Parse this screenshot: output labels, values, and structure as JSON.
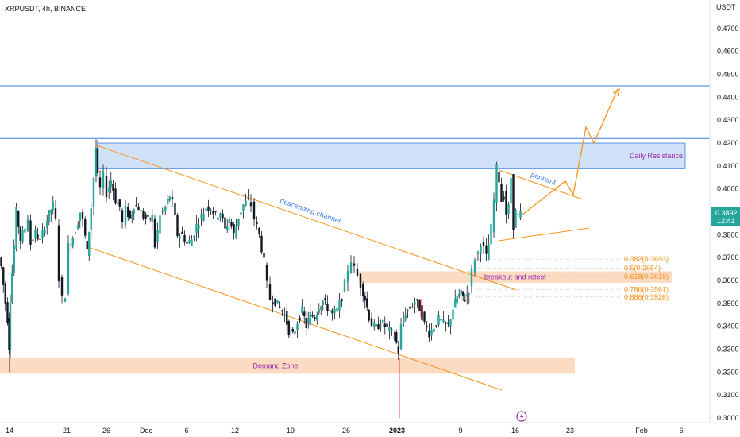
{
  "header": {
    "title": "XRPUSDT, 4h, BINANCE"
  },
  "colors": {
    "candle_up": "#26a69a",
    "candle_down": "#131722",
    "wick": "#131722",
    "trendline": "#f7931a",
    "resistance_fill": "#c9dcf6",
    "zone_fill": "#fbd2b4",
    "hline": "#3a7de6",
    "fib": "#f7931a",
    "channel_label": "#3a7de6",
    "zone_label": "#9c27b0",
    "price_badge": "#26a69a"
  },
  "chart_data": {
    "type": "candlestick",
    "y_axis": {
      "unit_label": "USDT",
      "range": [
        0.295,
        0.4835
      ],
      "ticks": [
        "0.4700",
        "0.4600",
        "0.4500",
        "0.4400",
        "0.4300",
        "0.4200",
        "0.4100",
        "0.4000",
        "0.3900",
        "0.3800",
        "0.3700",
        "0.3600",
        "0.3500",
        "0.3400",
        "0.3300",
        "0.3200",
        "0.3100",
        "0.3000"
      ]
    },
    "x_axis": {
      "ticks": [
        "14",
        "21",
        "26",
        "Dec",
        "6",
        "12",
        "19",
        "26",
        "2023",
        "9",
        "16",
        "23",
        "Feb",
        "6"
      ]
    },
    "current_price": "0.3892",
    "countdown": "12:41",
    "horizontal_lines": [
      0.445,
      0.422
    ],
    "zones": [
      {
        "label": "Daily Resistance",
        "top": 0.42,
        "bottom": 0.4088
      },
      {
        "label": "breakout and retest",
        "top": 0.364,
        "bottom": 0.359
      },
      {
        "label": "Demand Zone",
        "top": 0.3262,
        "bottom": 0.3193
      }
    ],
    "channel_label": "descending channel",
    "pennant_label": "pennant",
    "fib_levels": [
      {
        "label": "0.382(0.3693)",
        "value": 0.3693
      },
      {
        "label": "0.5(0.3654)",
        "value": 0.3654
      },
      {
        "label": "0.618(0.3618)",
        "value": 0.3618
      },
      {
        "label": "0.786(0.3561)",
        "value": 0.3561
      },
      {
        "label": "0.886(0.3528)",
        "value": 0.3528
      }
    ],
    "price_path": [
      {
        "t": 0,
        "p": 0.37
      },
      {
        "t": 3,
        "p": 0.366
      },
      {
        "t": 8,
        "p": 0.35
      },
      {
        "t": 11,
        "p": 0.343
      },
      {
        "t": 12,
        "p": 0.331
      },
      {
        "t": 14,
        "p": 0.352
      },
      {
        "t": 19,
        "p": 0.375
      },
      {
        "t": 22,
        "p": 0.39
      },
      {
        "t": 27,
        "p": 0.378
      },
      {
        "t": 33,
        "p": 0.383
      },
      {
        "t": 37,
        "p": 0.388
      },
      {
        "t": 40,
        "p": 0.376
      },
      {
        "t": 46,
        "p": 0.381
      },
      {
        "t": 52,
        "p": 0.377
      },
      {
        "t": 58,
        "p": 0.384
      },
      {
        "t": 63,
        "p": 0.389
      },
      {
        "t": 68,
        "p": 0.393
      },
      {
        "t": 72,
        "p": 0.386
      },
      {
        "t": 76,
        "p": 0.361
      },
      {
        "t": 80,
        "p": 0.352
      },
      {
        "t": 84,
        "p": 0.354
      },
      {
        "t": 88,
        "p": 0.375
      },
      {
        "t": 93,
        "p": 0.379
      },
      {
        "t": 97,
        "p": 0.382
      },
      {
        "t": 102,
        "p": 0.39
      },
      {
        "t": 106,
        "p": 0.386
      },
      {
        "t": 111,
        "p": 0.372
      },
      {
        "t": 116,
        "p": 0.392
      },
      {
        "t": 120,
        "p": 0.405
      },
      {
        "t": 122,
        "p": 0.418
      },
      {
        "t": 124,
        "p": 0.405
      },
      {
        "t": 128,
        "p": 0.4
      },
      {
        "t": 132,
        "p": 0.406
      },
      {
        "t": 136,
        "p": 0.398
      },
      {
        "t": 141,
        "p": 0.404
      },
      {
        "t": 147,
        "p": 0.395
      },
      {
        "t": 152,
        "p": 0.392
      },
      {
        "t": 156,
        "p": 0.385
      },
      {
        "t": 160,
        "p": 0.391
      },
      {
        "t": 165,
        "p": 0.387
      },
      {
        "t": 170,
        "p": 0.393
      },
      {
        "t": 176,
        "p": 0.392
      },
      {
        "t": 182,
        "p": 0.388
      },
      {
        "t": 188,
        "p": 0.386
      },
      {
        "t": 193,
        "p": 0.388
      },
      {
        "t": 197,
        "p": 0.375
      },
      {
        "t": 203,
        "p": 0.388
      },
      {
        "t": 210,
        "p": 0.392
      },
      {
        "t": 215,
        "p": 0.397
      },
      {
        "t": 219,
        "p": 0.394
      },
      {
        "t": 225,
        "p": 0.38
      },
      {
        "t": 231,
        "p": 0.38
      },
      {
        "t": 237,
        "p": 0.376
      },
      {
        "t": 243,
        "p": 0.378
      },
      {
        "t": 249,
        "p": 0.384
      },
      {
        "t": 255,
        "p": 0.388
      },
      {
        "t": 261,
        "p": 0.392
      },
      {
        "t": 267,
        "p": 0.392
      },
      {
        "t": 273,
        "p": 0.388
      },
      {
        "t": 279,
        "p": 0.39
      },
      {
        "t": 285,
        "p": 0.382
      },
      {
        "t": 290,
        "p": 0.387
      },
      {
        "t": 296,
        "p": 0.38
      },
      {
        "t": 302,
        "p": 0.388
      },
      {
        "t": 308,
        "p": 0.393
      },
      {
        "t": 314,
        "p": 0.395
      },
      {
        "t": 318,
        "p": 0.393
      },
      {
        "t": 322,
        "p": 0.387
      },
      {
        "t": 328,
        "p": 0.38
      },
      {
        "t": 334,
        "p": 0.368
      },
      {
        "t": 338,
        "p": 0.358
      },
      {
        "t": 342,
        "p": 0.352
      },
      {
        "t": 348,
        "p": 0.351
      },
      {
        "t": 354,
        "p": 0.348
      },
      {
        "t": 360,
        "p": 0.345
      },
      {
        "t": 365,
        "p": 0.338
      },
      {
        "t": 370,
        "p": 0.336
      },
      {
        "t": 376,
        "p": 0.342
      },
      {
        "t": 382,
        "p": 0.347
      },
      {
        "t": 387,
        "p": 0.34
      },
      {
        "t": 392,
        "p": 0.345
      },
      {
        "t": 398,
        "p": 0.344
      },
      {
        "t": 403,
        "p": 0.349
      },
      {
        "t": 408,
        "p": 0.351
      },
      {
        "t": 414,
        "p": 0.348
      },
      {
        "t": 420,
        "p": 0.345
      },
      {
        "t": 426,
        "p": 0.347
      },
      {
        "t": 432,
        "p": 0.353
      },
      {
        "t": 436,
        "p": 0.358
      },
      {
        "t": 440,
        "p": 0.365
      },
      {
        "t": 444,
        "p": 0.369
      },
      {
        "t": 448,
        "p": 0.365
      },
      {
        "t": 452,
        "p": 0.362
      },
      {
        "t": 456,
        "p": 0.358
      },
      {
        "t": 461,
        "p": 0.352
      },
      {
        "t": 466,
        "p": 0.344
      },
      {
        "t": 470,
        "p": 0.341
      },
      {
        "t": 475,
        "p": 0.339
      },
      {
        "t": 481,
        "p": 0.342
      },
      {
        "t": 486,
        "p": 0.34
      },
      {
        "t": 492,
        "p": 0.338
      },
      {
        "t": 498,
        "p": 0.336
      },
      {
        "t": 503,
        "p": 0.329
      },
      {
        "t": 507,
        "p": 0.34
      },
      {
        "t": 512,
        "p": 0.346
      },
      {
        "t": 518,
        "p": 0.348
      },
      {
        "t": 524,
        "p": 0.351
      },
      {
        "t": 530,
        "p": 0.348
      },
      {
        "t": 536,
        "p": 0.341
      },
      {
        "t": 542,
        "p": 0.337
      },
      {
        "t": 548,
        "p": 0.34
      },
      {
        "t": 554,
        "p": 0.343
      },
      {
        "t": 560,
        "p": 0.341
      },
      {
        "t": 566,
        "p": 0.34
      },
      {
        "t": 572,
        "p": 0.348
      },
      {
        "t": 577,
        "p": 0.353
      },
      {
        "t": 582,
        "p": 0.354
      },
      {
        "t": 587,
        "p": 0.352
      },
      {
        "t": 592,
        "p": 0.356
      },
      {
        "t": 596,
        "p": 0.364
      },
      {
        "t": 600,
        "p": 0.37
      },
      {
        "t": 604,
        "p": 0.372
      },
      {
        "t": 607,
        "p": 0.377
      },
      {
        "t": 611,
        "p": 0.374
      },
      {
        "t": 614,
        "p": 0.37
      },
      {
        "t": 617,
        "p": 0.376
      },
      {
        "t": 620,
        "p": 0.383
      },
      {
        "t": 624,
        "p": 0.395
      },
      {
        "t": 627,
        "p": 0.409
      },
      {
        "t": 630,
        "p": 0.404
      },
      {
        "t": 633,
        "p": 0.395
      },
      {
        "t": 636,
        "p": 0.397
      },
      {
        "t": 639,
        "p": 0.389
      },
      {
        "t": 642,
        "p": 0.392
      },
      {
        "t": 645,
        "p": 0.405
      },
      {
        "t": 648,
        "p": 0.384
      },
      {
        "t": 651,
        "p": 0.39
      },
      {
        "t": 654,
        "p": 0.388
      },
      {
        "t": 657,
        "p": 0.389
      }
    ]
  }
}
